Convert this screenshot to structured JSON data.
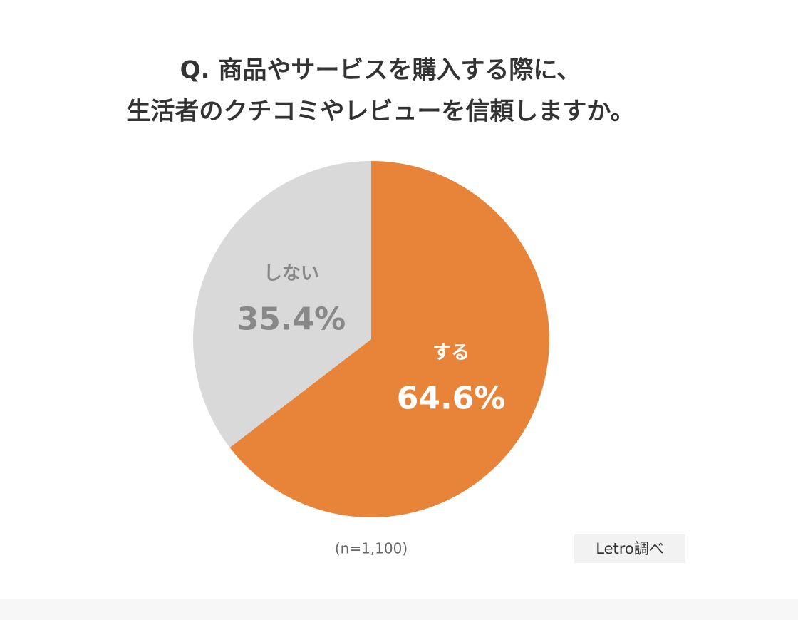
{
  "chart_data": {
    "type": "pie",
    "title": [
      "Q. 商品やサービスを購入する際に、",
      "生活者のクチコミやレビューを信頼しますか。"
    ],
    "categories": [
      "する",
      "しない"
    ],
    "values": [
      64.6,
      35.4
    ],
    "value_labels": [
      "64.6%",
      "35.4%"
    ],
    "colors": [
      "#e8833a",
      "#d9d9d9"
    ],
    "note": "(n=1,100)",
    "source": "Letro調べ"
  }
}
